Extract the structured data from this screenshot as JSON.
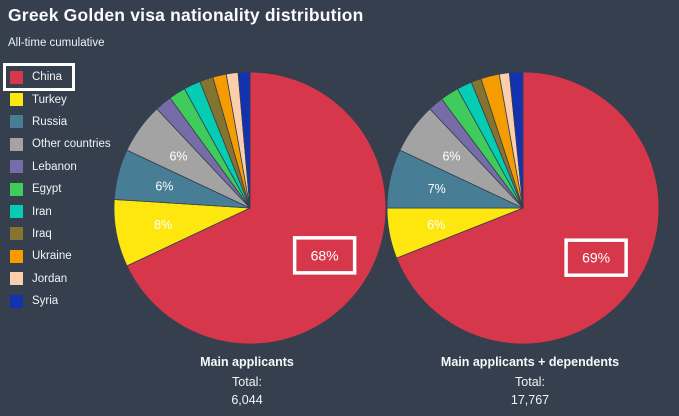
{
  "page": {
    "title": "Greek Golden visa nationality distribution",
    "subtitle": "All-time cumulative"
  },
  "colors": {
    "background": "#353f4e",
    "title_text": "#fafbfc",
    "label_text": "#ffffff",
    "highlight_box": "#ffffff"
  },
  "legend": {
    "items": [
      {
        "label": "China",
        "color": "#d7374b",
        "highlighted": true
      },
      {
        "label": "Turkey",
        "color": "#fde70e",
        "highlighted": false
      },
      {
        "label": "Russia",
        "color": "#477d95",
        "highlighted": false
      },
      {
        "label": "Other countries",
        "color": "#a3a3a3",
        "highlighted": false
      },
      {
        "label": "Lebanon",
        "color": "#776ca8",
        "highlighted": false
      },
      {
        "label": "Egypt",
        "color": "#40cc5d",
        "highlighted": false
      },
      {
        "label": "Iran",
        "color": "#04cdb4",
        "highlighted": false
      },
      {
        "label": "Iraq",
        "color": "#857330",
        "highlighted": false
      },
      {
        "label": "Ukraine",
        "color": "#f59c00",
        "highlighted": false
      },
      {
        "label": "Jordan",
        "color": "#fbcfae",
        "highlighted": false
      },
      {
        "label": "Syria",
        "color": "#1232b0",
        "highlighted": false
      }
    ]
  },
  "chart_data": [
    {
      "type": "pie",
      "title": "Main applicants",
      "total_label": "Total:",
      "total_value": "6,044",
      "categories": [
        "China",
        "Turkey",
        "Russia",
        "Other countries",
        "Lebanon",
        "Egypt",
        "Iran",
        "Iraq",
        "Ukraine",
        "Jordan",
        "Syria"
      ],
      "values": [
        68,
        8,
        6,
        6,
        2,
        2,
        2,
        1.6,
        1.6,
        1.4,
        1.4
      ],
      "labels": [
        "68%",
        "8%",
        "6%",
        "6%",
        "",
        "",
        "",
        "",
        "",
        "",
        ""
      ],
      "highlighted_slice": "China",
      "highlighted_label": "68%",
      "start_angle": 0,
      "direction": "clockwise",
      "legend_position": "left"
    },
    {
      "type": "pie",
      "title": "Main applicants + dependents",
      "total_label": "Total:",
      "total_value": "17,767",
      "categories": [
        "China",
        "Turkey",
        "Russia",
        "Other countries",
        "Lebanon",
        "Egypt",
        "Iran",
        "Iraq",
        "Ukraine",
        "Jordan",
        "Syria"
      ],
      "values": [
        69,
        6,
        7,
        6,
        1.8,
        2.2,
        1.8,
        1.2,
        2.2,
        1.2,
        1.6
      ],
      "labels": [
        "69%",
        "6%",
        "7%",
        "6%",
        "",
        "",
        "",
        "",
        "",
        "",
        ""
      ],
      "highlighted_slice": "China",
      "highlighted_label": "69%",
      "start_angle": 0,
      "direction": "clockwise",
      "legend_position": "left"
    }
  ]
}
